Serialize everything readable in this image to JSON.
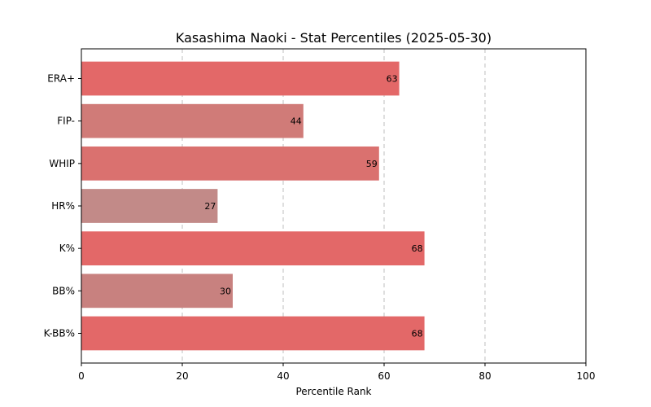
{
  "chart_data": {
    "type": "bar",
    "orientation": "horizontal",
    "title": "Kasashima Naoki - Stat Percentiles (2025-05-30)",
    "xlabel": "Percentile Rank",
    "ylabel": "",
    "xlim": [
      0,
      100
    ],
    "xticks": [
      "0",
      "20",
      "40",
      "60",
      "80",
      "100"
    ],
    "grid": "x-dashed",
    "legend": "none",
    "categories": [
      "ERA+",
      "FIP-",
      "WHIP",
      "HR%",
      "K%",
      "BB%",
      "K-BB%"
    ],
    "values": [
      63,
      44,
      59,
      27,
      68,
      30,
      68
    ],
    "colors": [
      "#e36868",
      "#d07b78",
      "#da716f",
      "#c28a88",
      "#e36868",
      "#c8817f",
      "#e36868"
    ]
  }
}
